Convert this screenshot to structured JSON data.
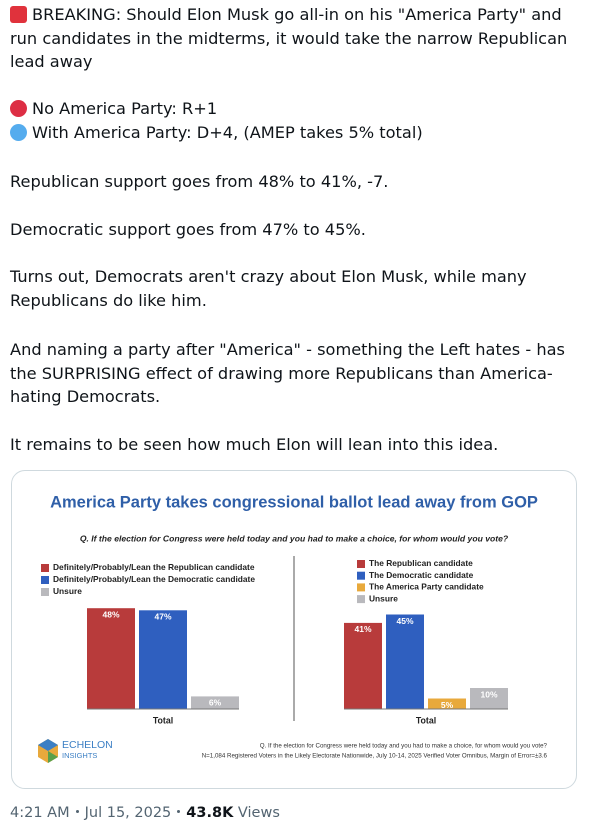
{
  "tweet": {
    "paragraphs": [
      "BREAKING: Should Elon Musk go all-in on his \"America Party\" and run candidates in the midterms, it would take the narrow Republican lead away",
      "No America Party: R+1",
      "With America Party: D+4, (AMEP takes 5% total)",
      "Republican support goes from 48% to 41%, -7.",
      "Democratic support goes from 47% to 45%.",
      "Turns out, Democrats aren't crazy about Elon Musk, while many Republicans do like him.",
      "And naming a party after \"America\" - something the Left hates - has the SURPRISING effect of drawing more Republicans than America-hating Democrats.",
      "It remains to be seen how much Elon will lean into this idea."
    ]
  },
  "card": {
    "title": "America Party takes congressional ballot lead away from GOP",
    "question": "Q. If the election for Congress were held today and you had to make a choice, for whom would you vote?",
    "logo_line1": "ECHELON",
    "logo_line2": "INSIGHTS",
    "footnote_line1": "Q. If the election for Congress were held today and you had to make a choice, for whom would you vote?",
    "footnote_line2": "N=1,084 Registered Voters in the Likely Electorate Nationwide, July 10-14, 2025 Verified Voter Omnibus, Margin of Error=±3.6"
  },
  "chart_data": [
    {
      "type": "bar",
      "categories": [
        "Total"
      ],
      "series": [
        {
          "name": "Definitely/Probably/Lean the Republican candidate",
          "color": "#b83b3b",
          "values": [
            48
          ],
          "value_labels": [
            "48%"
          ]
        },
        {
          "name": "Definitely/Probably/Lean the Democratic candidate",
          "color": "#2f5fbf",
          "values": [
            47
          ],
          "value_labels": [
            "47%"
          ]
        },
        {
          "name": "Unsure",
          "color": "#b9b9bd",
          "values": [
            6
          ],
          "value_labels": [
            "6%"
          ]
        }
      ]
    },
    {
      "type": "bar",
      "categories": [
        "Total"
      ],
      "series": [
        {
          "name": "The Republican candidate",
          "color": "#b83b3b",
          "values": [
            41
          ],
          "value_labels": [
            "41%"
          ]
        },
        {
          "name": "The Democratic candidate",
          "color": "#2f5fbf",
          "values": [
            45
          ],
          "value_labels": [
            "45%"
          ]
        },
        {
          "name": "The America Party candidate",
          "color": "#e8a93c",
          "values": [
            5
          ],
          "value_labels": [
            "5%"
          ]
        },
        {
          "name": "Unsure",
          "color": "#b9b9bd",
          "values": [
            10
          ],
          "value_labels": [
            "10%"
          ]
        }
      ]
    }
  ],
  "footer": {
    "time": "4:21 AM",
    "date": "Jul 15, 2025",
    "views_count": "43.8K",
    "views_label": "Views"
  }
}
